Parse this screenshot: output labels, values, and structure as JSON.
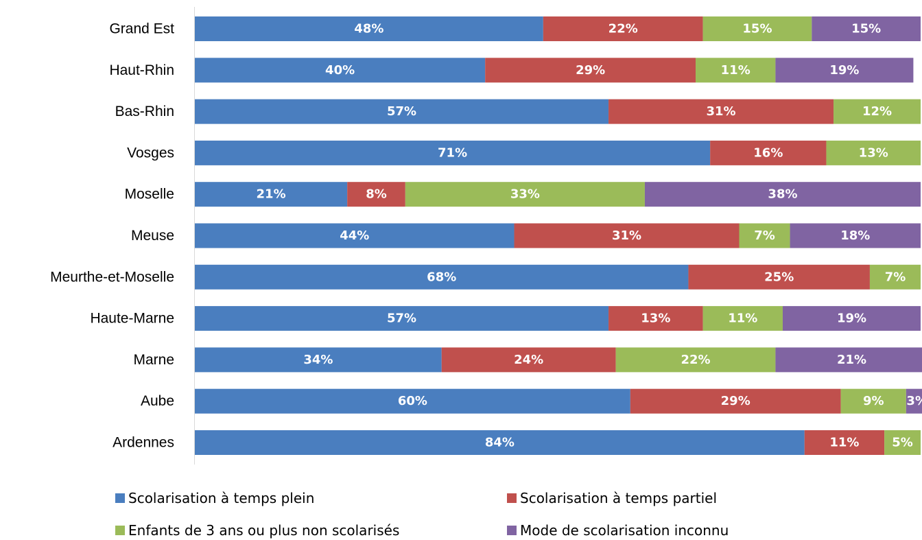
{
  "chart_data": {
    "type": "bar",
    "orientation": "horizontal",
    "stacked": true,
    "categories": [
      "Grand Est",
      "Haut-Rhin",
      "Bas-Rhin",
      "Vosges",
      "Moselle",
      "Meuse",
      "Meurthe-et-Moselle",
      "Haute-Marne",
      "Marne",
      "Aube",
      "Ardennes"
    ],
    "series": [
      {
        "name": "Scolarisation à temps plein",
        "color": "#4a7ebf",
        "values": [
          48,
          40,
          57,
          71,
          21,
          44,
          68,
          57,
          34,
          60,
          84
        ]
      },
      {
        "name": "Scolarisation à temps partiel",
        "color": "#c0504d",
        "values": [
          22,
          29,
          31,
          16,
          8,
          31,
          25,
          13,
          24,
          29,
          11
        ]
      },
      {
        "name": "Enfants de 3 ans ou plus non scolarisés",
        "color": "#9bbb59",
        "values": [
          15,
          11,
          12,
          13,
          33,
          7,
          7,
          11,
          22,
          9,
          5
        ]
      },
      {
        "name": "Mode de scolarisation inconnu",
        "color": "#8064a2",
        "values": [
          15,
          19,
          0,
          0,
          38,
          18,
          0,
          19,
          21,
          3,
          0
        ]
      }
    ],
    "value_suffix": "%",
    "xlim": [
      0,
      100
    ],
    "grid": false,
    "legend_position": "bottom"
  }
}
